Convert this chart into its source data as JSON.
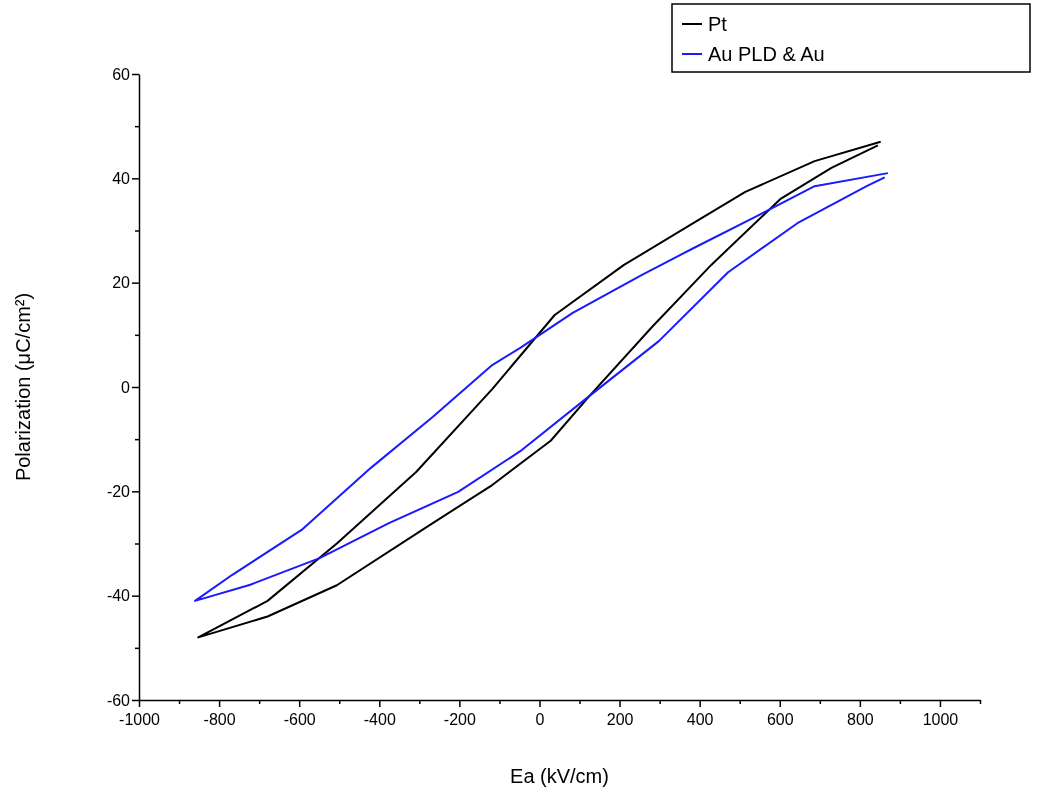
{
  "chart_data": {
    "type": "line",
    "xlabel": "Ea (kV/cm)",
    "ylabel": "Polarization (μC/cm²)",
    "xlim": [
      -1000,
      1100
    ],
    "ylim": [
      -60,
      60
    ],
    "xticks": [
      -1000,
      {
        "value": -900,
        "label": null
      },
      -800,
      {
        "value": -700,
        "label": null
      },
      -600,
      {
        "value": -500,
        "label": null
      },
      -400,
      {
        "value": -300,
        "label": null
      },
      -200,
      {
        "value": -100,
        "label": null
      },
      0,
      {
        "value": 100,
        "label": null
      },
      200,
      {
        "value": 300,
        "label": null
      },
      400,
      {
        "value": 500,
        "label": null
      },
      600,
      {
        "value": 700,
        "label": null
      },
      800,
      {
        "value": 900,
        "label": null
      },
      1000,
      {
        "value": 1100,
        "label": null
      }
    ],
    "yticks": [
      -60,
      {
        "value": -50,
        "label": null
      },
      -40,
      {
        "value": -30,
        "label": null
      },
      -20,
      {
        "value": -10,
        "label": null
      },
      0,
      {
        "value": 10,
        "label": null
      },
      20,
      {
        "value": 30,
        "label": null
      },
      40,
      {
        "value": 50,
        "label": null
      },
      60
    ],
    "grid": false,
    "legend": "top right",
    "marker": "none",
    "line_style": "solid",
    "series": [
      {
        "name": "Pt",
        "color": "#000000",
        "x": [
          852,
          687,
          514,
          384,
          211,
          38,
          -118,
          -308,
          -506,
          -679,
          -852,
          -679,
          -506,
          -281,
          -118,
          28,
          125,
          281,
          429,
          601,
          729,
          845
        ],
        "values": [
          47,
          43.3,
          37.4,
          31.4,
          23.4,
          13.8,
          -0.4,
          -16.3,
          -30,
          -41,
          -48,
          -44,
          -38,
          -26.8,
          -18.8,
          -10.3,
          -1.7,
          11.5,
          23.4,
          36,
          42,
          46.3
        ]
      },
      {
        "name": "Au PLD & Au",
        "color": "#1a1aff",
        "x": [
          870,
          687,
          539,
          384,
          256,
          83,
          -48,
          -118,
          -266,
          -421,
          -594,
          -767,
          -860,
          -722,
          -549,
          -376,
          -203,
          -48,
          125,
          298,
          471,
          644,
          817,
          862
        ],
        "values": [
          41,
          38.5,
          32.6,
          26.6,
          21.5,
          14.2,
          7.5,
          4.2,
          -5.7,
          -15.5,
          -27.4,
          -36,
          -41,
          -37.9,
          -32.8,
          -26.1,
          -20.1,
          -12.3,
          -1.7,
          8.8,
          22,
          31.4,
          38.5,
          40.2
        ]
      }
    ]
  }
}
